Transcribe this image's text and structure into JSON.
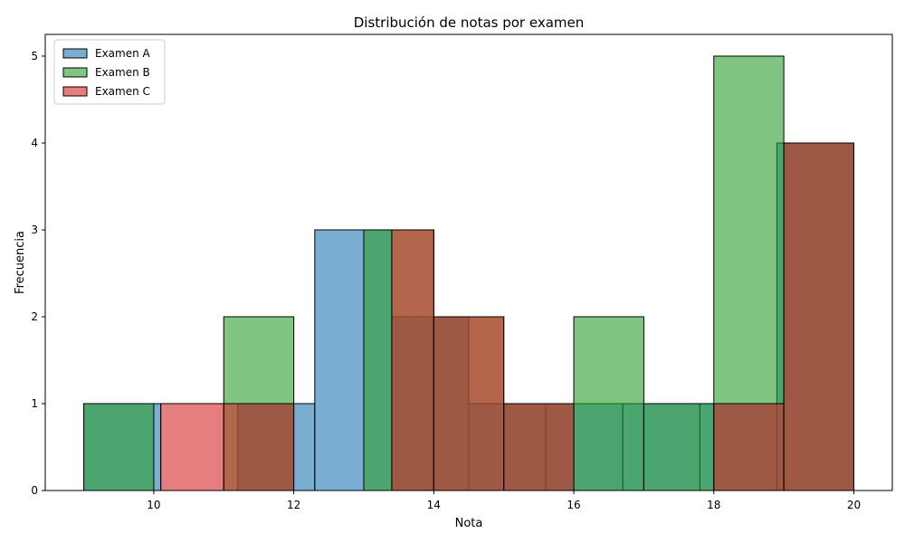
{
  "chart_data": {
    "type": "bar",
    "title": "Distribución de notas por examen",
    "xlabel": "Nota",
    "ylabel": "Frecuencia",
    "xlim": [
      8.45,
      20.55
    ],
    "ylim": [
      0,
      5.25
    ],
    "xticks": [
      10,
      12,
      14,
      16,
      18,
      20
    ],
    "yticks": [
      0,
      1,
      2,
      3,
      4,
      5
    ],
    "grid": false,
    "legend_position": "top-left",
    "series": [
      {
        "name": "Examen A",
        "color": "#1f77b4",
        "bins": [
          {
            "x0": 9.0,
            "x1": 10.1,
            "count": 1
          },
          {
            "x0": 10.1,
            "x1": 11.2,
            "count": 0
          },
          {
            "x0": 11.2,
            "x1": 12.3,
            "count": 1
          },
          {
            "x0": 12.3,
            "x1": 13.4,
            "count": 3
          },
          {
            "x0": 13.4,
            "x1": 14.5,
            "count": 2
          },
          {
            "x0": 14.5,
            "x1": 15.6,
            "count": 1
          },
          {
            "x0": 15.6,
            "x1": 16.7,
            "count": 1
          },
          {
            "x0": 16.7,
            "x1": 17.8,
            "count": 1
          },
          {
            "x0": 17.8,
            "x1": 18.9,
            "count": 1
          },
          {
            "x0": 18.9,
            "x1": 20.0,
            "count": 4
          }
        ]
      },
      {
        "name": "Examen B",
        "color": "#2ca02c",
        "bins": [
          {
            "x0": 9.0,
            "x1": 10.0,
            "count": 1
          },
          {
            "x0": 10.0,
            "x1": 11.0,
            "count": 0
          },
          {
            "x0": 11.0,
            "x1": 12.0,
            "count": 2
          },
          {
            "x0": 12.0,
            "x1": 13.0,
            "count": 0
          },
          {
            "x0": 13.0,
            "x1": 14.0,
            "count": 3
          },
          {
            "x0": 14.0,
            "x1": 15.0,
            "count": 2
          },
          {
            "x0": 15.0,
            "x1": 16.0,
            "count": 1
          },
          {
            "x0": 16.0,
            "x1": 17.0,
            "count": 2
          },
          {
            "x0": 17.0,
            "x1": 18.0,
            "count": 1
          },
          {
            "x0": 18.0,
            "x1": 19.0,
            "count": 5
          },
          {
            "x0": 19.0,
            "x1": 20.0,
            "count": 4
          }
        ]
      },
      {
        "name": "Examen C",
        "color": "#d62728",
        "bins": [
          {
            "x0": 10.1,
            "x1": 11.0,
            "count": 1
          },
          {
            "x0": 11.0,
            "x1": 12.0,
            "count": 1
          },
          {
            "x0": 13.4,
            "x1": 14.0,
            "count": 3
          },
          {
            "x0": 14.0,
            "x1": 15.0,
            "count": 2
          },
          {
            "x0": 15.0,
            "x1": 16.0,
            "count": 1
          },
          {
            "x0": 18.0,
            "x1": 19.0,
            "count": 1
          },
          {
            "x0": 19.0,
            "x1": 20.0,
            "count": 4
          }
        ]
      }
    ]
  }
}
